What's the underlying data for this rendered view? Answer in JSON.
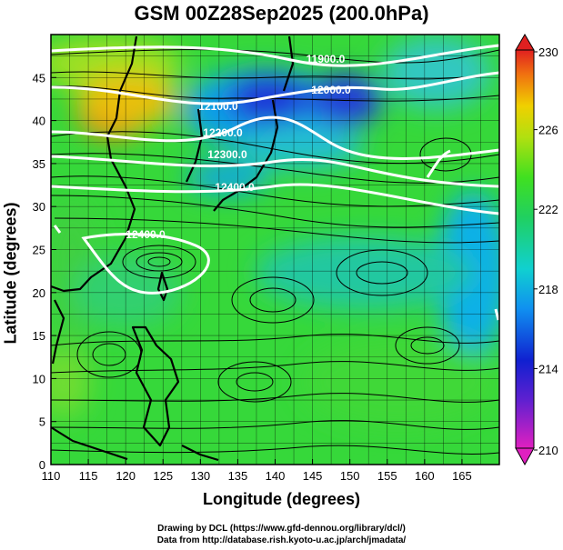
{
  "title": "GSM 00Z28Sep2025 (200.0hPa)",
  "x_axis": {
    "label": "Longitude (degrees)",
    "range": [
      110,
      170
    ],
    "ticks": [
      "110",
      "115",
      "120",
      "125",
      "130",
      "135",
      "140",
      "145",
      "150",
      "155",
      "160",
      "165"
    ]
  },
  "y_axis": {
    "label": "Latitude  (degrees)",
    "range": [
      0,
      50
    ],
    "ticks": [
      "0",
      "5",
      "10",
      "15",
      "20",
      "25",
      "30",
      "35",
      "40",
      "45"
    ]
  },
  "colorbar": {
    "range": [
      210,
      230
    ],
    "ticks": [
      "210",
      "214",
      "218",
      "222",
      "226",
      "230"
    ]
  },
  "contour_labels": [
    "11900.0",
    "12000.0",
    "12100.0",
    "12200.0",
    "12300.0",
    "12400.0",
    "12400.0"
  ],
  "credits": {
    "line1": "Drawing by DCL (https://www.gfd-dennou.org/library/dcl/)",
    "line2": "Data from http://database.rish.kyoto-u.ac.jp/arch/jmadata/"
  },
  "colors": {
    "background_field": "#33dd22",
    "warm": "#ff6600",
    "cold": "#1a33dd",
    "contour": "#ffffff",
    "coast": "#000000"
  }
}
